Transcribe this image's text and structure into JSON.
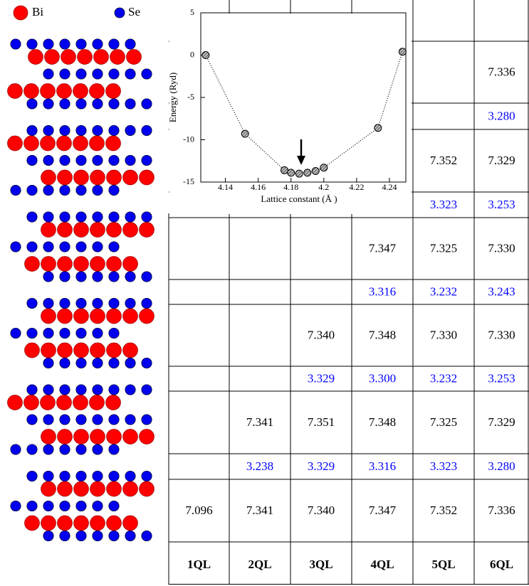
{
  "legend": [
    "Bi",
    "Se"
  ],
  "table": {
    "header": [
      "1QL",
      "2QL",
      "3QL",
      "4QL",
      "5QL",
      "6QL"
    ],
    "rows": [
      [
        null,
        null,
        null,
        null,
        null,
        "7.336"
      ],
      [
        null,
        null,
        null,
        null,
        null,
        "3.280"
      ],
      [
        null,
        null,
        null,
        null,
        "7.352",
        "7.329"
      ],
      [
        null,
        null,
        null,
        null,
        "3.323",
        "3.253"
      ],
      [
        null,
        null,
        null,
        "7.347",
        "7.325",
        "7.330"
      ],
      [
        null,
        null,
        null,
        "3.316",
        "3.232",
        "3.243"
      ],
      [
        null,
        null,
        "7.340",
        "7.348",
        "7.330",
        "7.330"
      ],
      [
        null,
        null,
        "3.329",
        "3.300",
        "3.232",
        "3.253"
      ],
      [
        null,
        "7.341",
        "7.351",
        "7.348",
        "7.325",
        "7.329"
      ],
      [
        null,
        "3.238",
        "3.329",
        "3.316",
        "3.323",
        "3.280"
      ],
      [
        "7.096",
        "7.341",
        "7.340",
        "7.347",
        "7.352",
        "7.336"
      ]
    ]
  },
  "chart_data": {
    "type": "line",
    "xlabel": "Lattice constant (Å )",
    "ylabel": "Energy (Ryd)",
    "x": [
      4.128,
      4.152,
      4.176,
      4.18,
      4.185,
      4.19,
      4.195,
      4.2,
      4.233,
      4.248
    ],
    "series": [
      {
        "color": "#000000",
        "values": [
          0,
          -9.3,
          -13.6,
          -13.9,
          -14.0,
          -13.9,
          -13.7,
          -13.3,
          -8.6,
          0.4
        ]
      }
    ],
    "xlim": [
      4.125,
      4.25
    ],
    "ylim": [
      -15,
      5
    ],
    "xticks": [
      4.14,
      4.16,
      4.18,
      4.2,
      4.22,
      4.24
    ],
    "yticks": [
      5,
      0,
      -5,
      -10,
      -15
    ]
  }
}
